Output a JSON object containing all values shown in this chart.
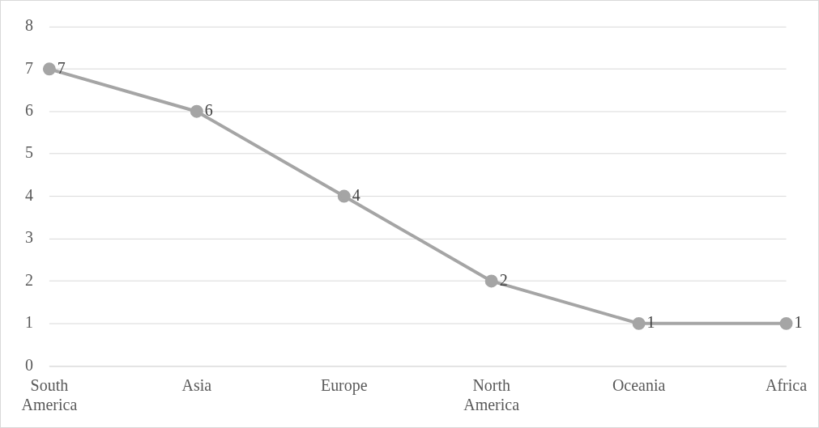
{
  "chart_data": {
    "type": "line",
    "categories": [
      "South America",
      "Asia",
      "Europe",
      "North America",
      "Oceania",
      "Africa"
    ],
    "series": [
      {
        "color": "#a5a5a5",
        "values": [
          7,
          6,
          4,
          2,
          1,
          1
        ]
      }
    ],
    "ylim": [
      0,
      8
    ],
    "yticks": [
      0,
      1,
      2,
      3,
      4,
      5,
      6,
      7,
      8
    ],
    "grid": "y",
    "legend": false,
    "marker": "circle",
    "line_style": "solid",
    "data_labels": true
  }
}
